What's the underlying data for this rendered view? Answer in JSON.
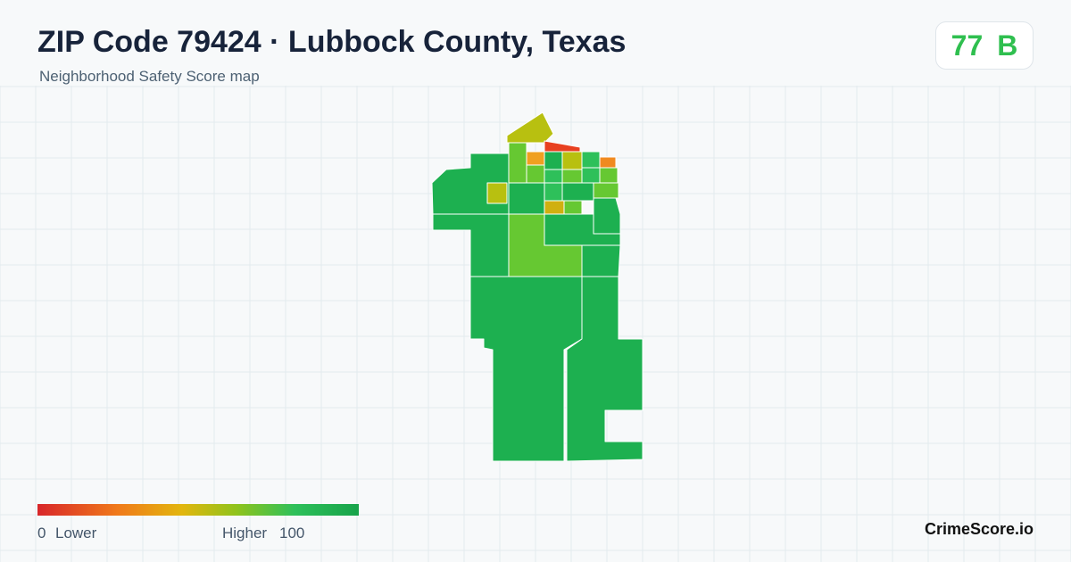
{
  "header": {
    "title": "ZIP Code 79424 · Lubbock County, Texas",
    "subtitle": "Neighborhood Safety Score map"
  },
  "score": {
    "value": 77,
    "grade": "B"
  },
  "legend": {
    "min": 0,
    "low_label": "Lower",
    "high_label": "Higher",
    "max": 100
  },
  "footer": {
    "brand": "CrimeScore.io"
  }
}
